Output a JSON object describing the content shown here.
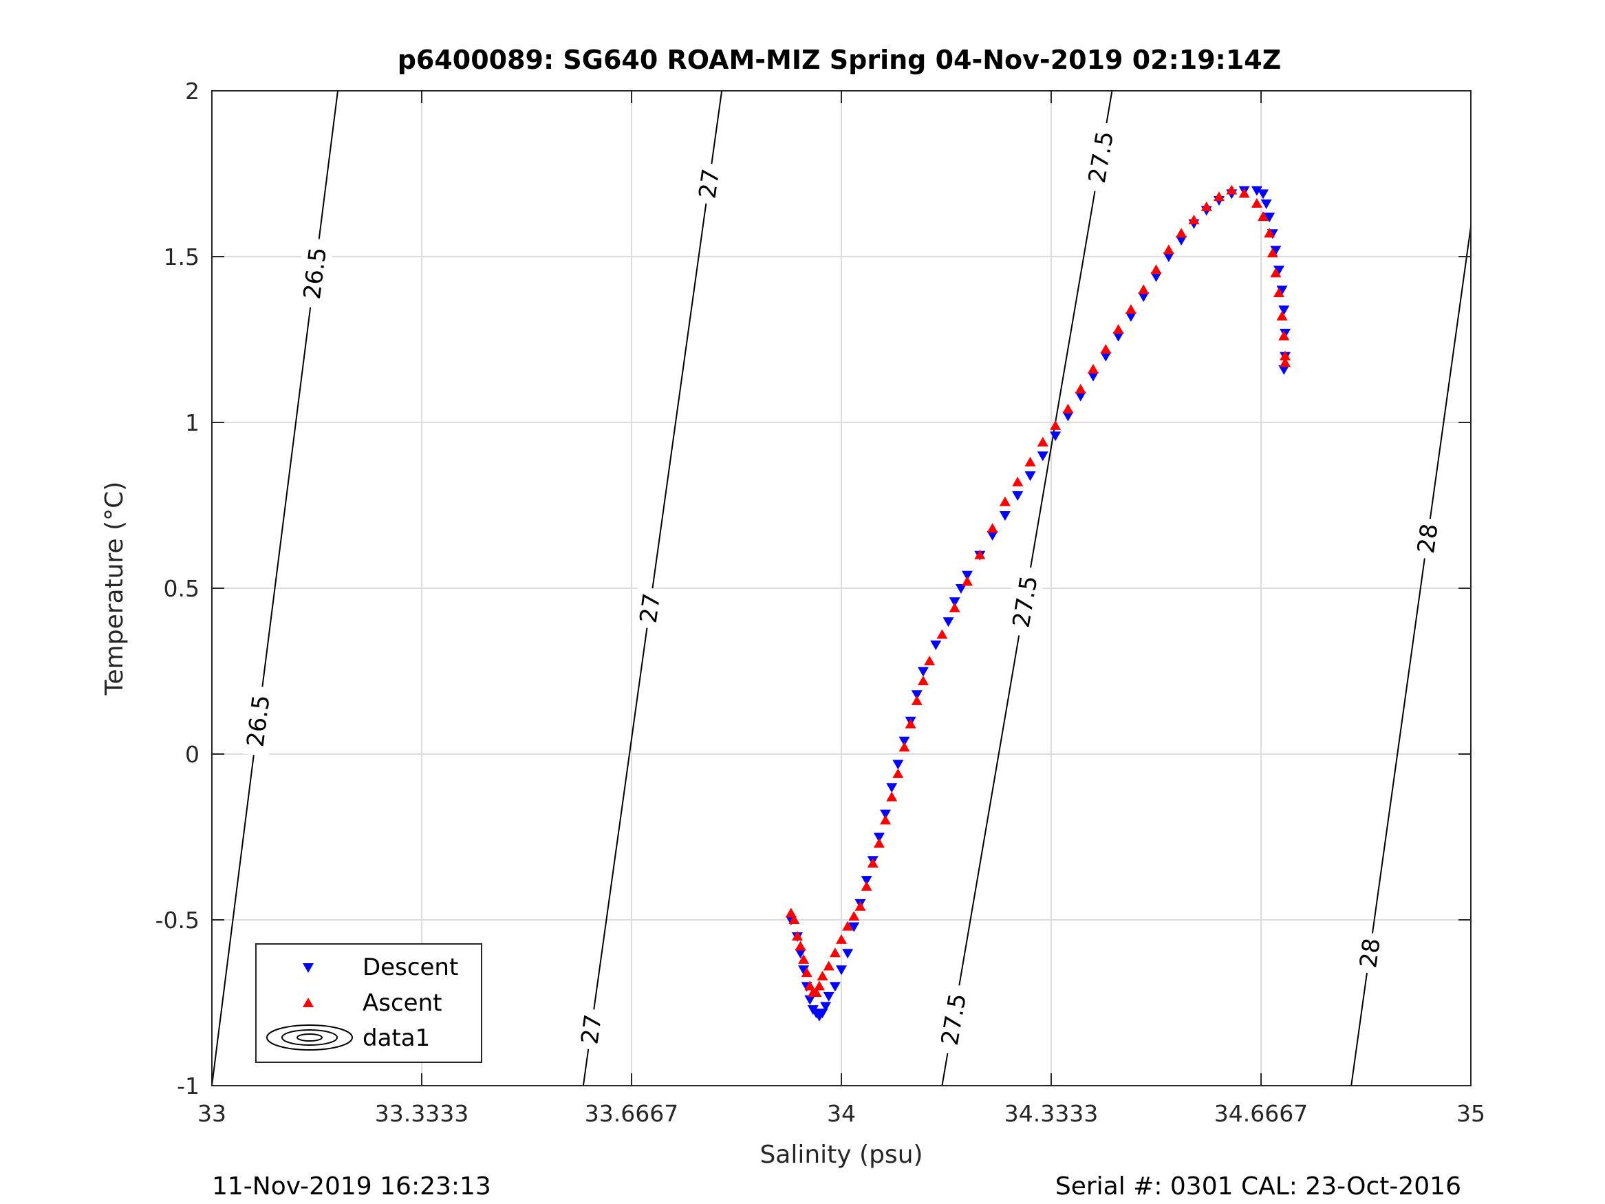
{
  "figure": {
    "title": "p6400089: SG640 ROAM-MIZ Spring 04-Nov-2019 02:19:14Z",
    "footer_left": "11-Nov-2019 16:23:13",
    "footer_right": "Serial #: 0301  CAL: 23-Oct-2016"
  },
  "chart_data": {
    "type": "scatter",
    "xlabel": "Salinity (psu)",
    "ylabel": "Temperature (°C)",
    "xlim": [
      33,
      35
    ],
    "ylim": [
      -1,
      2
    ],
    "xticks": [
      33,
      33.3333,
      33.6667,
      34,
      34.3333,
      34.6667,
      35
    ],
    "xtick_labels": [
      "33",
      "33.3333",
      "33.6667",
      "34",
      "34.3333",
      "34.6667",
      "35"
    ],
    "yticks": [
      -1,
      -0.5,
      0,
      0.5,
      1,
      1.5,
      2
    ],
    "ytick_labels": [
      "-1",
      "-0.5",
      "0",
      "0.5",
      "1",
      "1.5",
      "2"
    ],
    "grid": true,
    "legend_position": "bottom-left",
    "colors": {
      "descent": "#0000ff",
      "ascent": "#ff0000",
      "contour": "#000000",
      "grid": "#dcdcdc"
    },
    "series": [
      {
        "name": "Descent",
        "marker": "triangle-down",
        "x": [
          33.92,
          33.93,
          33.935,
          33.94,
          33.945,
          33.95,
          33.955,
          33.96,
          33.965,
          33.97,
          33.975,
          33.98,
          33.99,
          34.0,
          34.01,
          34.02,
          34.03,
          34.04,
          34.05,
          34.06,
          34.07,
          34.08,
          34.09,
          34.1,
          34.11,
          34.12,
          34.13,
          34.15,
          34.17,
          34.18,
          34.19,
          34.2,
          34.22,
          34.24,
          34.26,
          34.28,
          34.3,
          34.32,
          34.34,
          34.36,
          34.38,
          34.4,
          34.42,
          34.44,
          34.46,
          34.48,
          34.5,
          34.52,
          34.54,
          34.56,
          34.58,
          34.6,
          34.62,
          34.64,
          34.66,
          34.67,
          34.675,
          34.68,
          34.685,
          34.69,
          34.695,
          34.7,
          34.703,
          34.705,
          34.705,
          34.703
        ],
        "y": [
          -0.5,
          -0.55,
          -0.6,
          -0.65,
          -0.7,
          -0.74,
          -0.77,
          -0.78,
          -0.79,
          -0.78,
          -0.76,
          -0.73,
          -0.7,
          -0.65,
          -0.6,
          -0.52,
          -0.45,
          -0.38,
          -0.32,
          -0.25,
          -0.18,
          -0.1,
          -0.03,
          0.04,
          0.1,
          0.18,
          0.25,
          0.33,
          0.4,
          0.46,
          0.5,
          0.54,
          0.6,
          0.66,
          0.72,
          0.78,
          0.84,
          0.9,
          0.96,
          1.02,
          1.08,
          1.14,
          1.2,
          1.26,
          1.32,
          1.38,
          1.44,
          1.5,
          1.55,
          1.6,
          1.64,
          1.67,
          1.69,
          1.7,
          1.7,
          1.69,
          1.66,
          1.62,
          1.57,
          1.52,
          1.46,
          1.4,
          1.34,
          1.27,
          1.2,
          1.16
        ]
      },
      {
        "name": "Ascent",
        "marker": "triangle-up",
        "x": [
          33.92,
          33.925,
          33.93,
          33.935,
          33.94,
          33.945,
          33.95,
          33.955,
          33.96,
          33.965,
          33.97,
          33.98,
          33.99,
          34.0,
          34.01,
          34.02,
          34.03,
          34.04,
          34.05,
          34.06,
          34.07,
          34.08,
          34.09,
          34.1,
          34.11,
          34.12,
          34.13,
          34.14,
          34.16,
          34.18,
          34.2,
          34.22,
          34.24,
          34.26,
          34.28,
          34.3,
          34.32,
          34.34,
          34.36,
          34.38,
          34.4,
          34.42,
          34.44,
          34.46,
          34.48,
          34.5,
          34.52,
          34.54,
          34.56,
          34.58,
          34.6,
          34.62,
          34.64,
          34.66,
          34.67,
          34.68,
          34.685,
          34.69,
          34.695,
          34.7,
          34.703,
          34.705,
          34.705
        ],
        "y": [
          -0.48,
          -0.5,
          -0.55,
          -0.58,
          -0.62,
          -0.66,
          -0.7,
          -0.72,
          -0.72,
          -0.7,
          -0.67,
          -0.64,
          -0.6,
          -0.56,
          -0.52,
          -0.49,
          -0.46,
          -0.4,
          -0.33,
          -0.27,
          -0.2,
          -0.13,
          -0.06,
          0.02,
          0.09,
          0.16,
          0.22,
          0.28,
          0.36,
          0.44,
          0.52,
          0.6,
          0.68,
          0.76,
          0.82,
          0.88,
          0.94,
          0.99,
          1.04,
          1.1,
          1.16,
          1.22,
          1.28,
          1.34,
          1.4,
          1.46,
          1.52,
          1.57,
          1.61,
          1.65,
          1.68,
          1.7,
          1.69,
          1.66,
          1.62,
          1.57,
          1.51,
          1.45,
          1.39,
          1.32,
          1.26,
          1.2,
          1.18
        ]
      }
    ],
    "contours": [
      {
        "level": "26.5",
        "s_at_tmin": 33.0,
        "s_at_tmax": 33.2,
        "labels": [
          {
            "text": "26.5",
            "t": 0.1
          },
          {
            "text": "26.5",
            "t": 1.45
          }
        ]
      },
      {
        "level": "27",
        "s_at_tmin": 33.59,
        "s_at_tmax": 33.81,
        "labels": [
          {
            "text": "27",
            "t": -0.83
          },
          {
            "text": "27",
            "t": 0.44
          },
          {
            "text": "27",
            "t": 1.72
          }
        ]
      },
      {
        "level": "27.5",
        "s_at_tmin": 34.16,
        "s_at_tmax": 34.43,
        "labels": [
          {
            "text": "27.5",
            "t": -0.8
          },
          {
            "text": "27.5",
            "t": 0.46
          },
          {
            "text": "27.5",
            "t": 1.8
          }
        ]
      },
      {
        "level": "28",
        "s_at_tmin": 34.81,
        "s_at_tmax": 35.03,
        "labels": [
          {
            "text": "28",
            "t": -0.6
          },
          {
            "text": "28",
            "t": 0.65
          }
        ]
      }
    ],
    "legend_entries": [
      "Descent",
      "Ascent",
      "data1"
    ]
  }
}
